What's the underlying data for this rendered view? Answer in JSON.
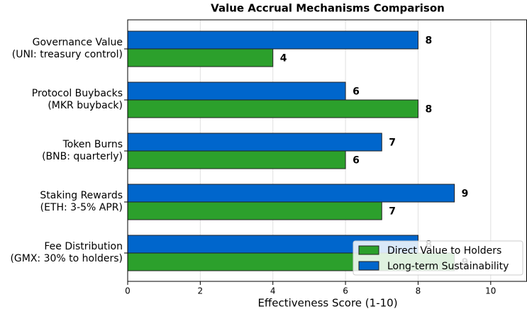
{
  "chart_data": {
    "type": "hbar",
    "title": "Value Accrual Mechanisms Comparison",
    "categories": [
      "Governance Value\n(UNI: treasury control)",
      "Protocol Buybacks\n(MKR buyback)",
      "Token Burns\n(BNB: quarterly)",
      "Staking Rewards\n(ETH: 3-5% APR)",
      "Fee Distribution\n(GMX: 30% to holders)"
    ],
    "series": [
      {
        "name": "Direct Value to Holders",
        "color": "#2ca02c",
        "values": [
          4,
          8,
          6,
          7,
          9
        ]
      },
      {
        "name": "Long-term Sustainability",
        "color": "#0066cc",
        "values": [
          8,
          6,
          7,
          9,
          8
        ]
      }
    ],
    "xlabel": "Effectiveness Score (1-10)",
    "xlim": [
      0,
      11
    ],
    "xticks": [
      0,
      2,
      4,
      6,
      8,
      10
    ],
    "grid": true,
    "legend": "lower right"
  }
}
